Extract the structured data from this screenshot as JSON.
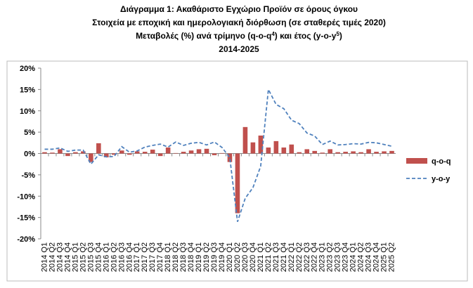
{
  "chart_data": {
    "type": "combo",
    "title_lines": [
      "Διάγραμμα 1: Ακαθάριστο Εγχώριο Προϊόν σε όρους όγκου",
      "Στοιχεία με εποχική και ημερολογιακή διόρθωση (σε σταθερές τιμές 2020)"
    ],
    "rate_line": [
      "Μεταβολές (%) ανά τρίμηνο (q-o-q",
      "4",
      ") και έτος (y-o-y",
      "5",
      ")"
    ],
    "period": "2014-2025",
    "categories": [
      "2014 Q1",
      "2014 Q2",
      "2014 Q3",
      "2014 Q4",
      "2015 Q1",
      "2015 Q2",
      "2015 Q3",
      "2015 Q4",
      "2016 Q1",
      "2016 Q2",
      "2016 Q3",
      "2016 Q4",
      "2017 Q1",
      "2017 Q2",
      "2017 Q3",
      "2017 Q4",
      "2018 Q1",
      "2018 Q2",
      "2018 Q3",
      "2018 Q4",
      "2019 Q1",
      "2019 Q2",
      "2019 Q3",
      "2019 Q4",
      "2020 Q1",
      "2020 Q2",
      "2020 Q3",
      "2020 Q4",
      "2021 Q1",
      "2021 Q2",
      "2021 Q3",
      "2021 Q4",
      "2022 Q1",
      "2022 Q2",
      "2022 Q3",
      "2022 Q4",
      "2023 Q1",
      "2023 Q2",
      "2023 Q3",
      "2023 Q4",
      "2024 Q1",
      "2024 Q2",
      "2024 Q3",
      "2024 Q4",
      "2025 Q1",
      "2025 Q2"
    ],
    "series": [
      {
        "name": "q-o-q",
        "type": "bar",
        "color": "#c0504d",
        "values": [
          0.3,
          0.2,
          1.0,
          -0.6,
          0.3,
          0.5,
          -2.0,
          2.4,
          -0.9,
          -0.3,
          0.7,
          -0.3,
          0.5,
          0.4,
          0.9,
          -0.6,
          1.4,
          0.1,
          0.4,
          0.7,
          1.0,
          1.1,
          -0.4,
          0.1,
          -2.0,
          -14.0,
          6.2,
          2.6,
          4.2,
          1.4,
          2.9,
          1.4,
          2.1,
          0.3,
          1.0,
          0.6,
          0.2,
          1.0,
          0.3,
          0.4,
          0.5,
          0.3,
          1.0,
          0.4,
          0.5,
          0.6
        ]
      },
      {
        "name": "y-o-y",
        "type": "line",
        "dashed": true,
        "color": "#4f81bd",
        "values": [
          1.0,
          1.0,
          1.3,
          0.5,
          0.8,
          0.8,
          -2.5,
          -0.3,
          -0.8,
          -0.7,
          1.6,
          0.3,
          0.6,
          1.5,
          1.9,
          2.2,
          1.5,
          2.7,
          1.9,
          2.4,
          2.6,
          2.0,
          2.7,
          1.4,
          -1.0,
          -16.0,
          -10.5,
          -8.0,
          -3.0,
          15.0,
          11.5,
          10.5,
          7.8,
          7.0,
          4.8,
          4.1,
          2.1,
          2.9,
          2.0,
          2.1,
          2.3,
          2.2,
          2.6,
          2.5,
          2.1,
          1.7
        ]
      }
    ],
    "ylim": [
      -20,
      20
    ],
    "yticks": [
      {
        "value": -20,
        "label": "-20%"
      },
      {
        "value": -15,
        "label": "-15%"
      },
      {
        "value": -10,
        "label": "-10%"
      },
      {
        "value": -5,
        "label": "-5%"
      },
      {
        "value": 0,
        "label": "0%"
      },
      {
        "value": 5,
        "label": "5%"
      },
      {
        "value": 10,
        "label": "10%"
      },
      {
        "value": 15,
        "label": "15%"
      },
      {
        "value": 20,
        "label": "20%"
      }
    ],
    "grid": false,
    "legend": "right"
  }
}
